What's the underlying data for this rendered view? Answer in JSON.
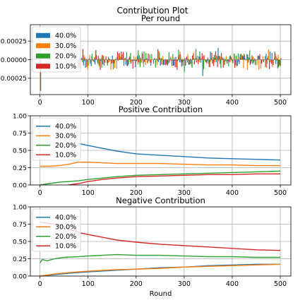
{
  "figure": {
    "suptitle": "Contribution Plot"
  },
  "chart_data": [
    {
      "type": "bar",
      "title": "Per round",
      "xlabel": "",
      "ylabel": "",
      "xlim": [
        -20,
        522
      ],
      "ylim": [
        -0.00047,
        0.00047
      ],
      "xticks": [
        0,
        100,
        200,
        300,
        400,
        500
      ],
      "xtick_labels": [
        "0",
        "100",
        "200",
        "300",
        "400",
        "500"
      ],
      "yticks": [
        0.00025,
        0.0,
        -0.00025
      ],
      "ytick_labels": [
        "0.00025",
        "0.00000",
        "-0.00025"
      ],
      "grid": true,
      "legend": "upper left",
      "series": [
        {
          "name": "40.0%",
          "color": "#1f77b4",
          "offset": -1.5
        },
        {
          "name": "30.0%",
          "color": "#ff7f0e",
          "offset": -0.5
        },
        {
          "name": "20.0%",
          "color": "#2ca02c",
          "offset": 0.5
        },
        {
          "name": "10.0%",
          "color": "#d62728",
          "offset": 1.5
        }
      ],
      "rounds": {
        "start": 80,
        "end": 500,
        "step": 4
      },
      "noise_amplitude": 0.00012,
      "outliers": [
        {
          "x": 0,
          "series": "10.0%",
          "value": -0.00042
        },
        {
          "x": 340,
          "series": "40.0%",
          "value": -0.00022
        },
        {
          "x": 405,
          "series": "10.0%",
          "value": 0.0002
        }
      ]
    },
    {
      "type": "line",
      "title": "Positive Contribution",
      "xlabel": "",
      "ylabel": "",
      "xlim": [
        -20,
        522
      ],
      "ylim": [
        0,
        1.0
      ],
      "xticks": [
        0,
        100,
        200,
        300,
        400,
        500
      ],
      "xtick_labels": [
        "0",
        "100",
        "200",
        "300",
        "400",
        "500"
      ],
      "yticks": [
        0.0,
        0.25,
        0.5,
        0.75,
        1.0
      ],
      "ytick_labels": [
        "0.00",
        "0.25",
        "0.50",
        "0.75",
        "1.00"
      ],
      "grid": true,
      "legend": "upper left",
      "series": [
        {
          "name": "40.0%",
          "color": "#1f77b4",
          "x": [
            80,
            100,
            130,
            160,
            200,
            250,
            300,
            350,
            400,
            450,
            500
          ],
          "y": [
            0.6,
            0.57,
            0.53,
            0.49,
            0.45,
            0.43,
            0.41,
            0.39,
            0.38,
            0.37,
            0.36
          ]
        },
        {
          "name": "30.0%",
          "color": "#ff7f0e",
          "x": [
            0,
            20,
            40,
            60,
            80,
            100,
            130,
            160,
            200,
            250,
            300,
            350,
            400,
            450,
            500
          ],
          "y": [
            0.27,
            0.27,
            0.28,
            0.3,
            0.33,
            0.33,
            0.32,
            0.31,
            0.31,
            0.31,
            0.3,
            0.29,
            0.29,
            0.28,
            0.28
          ]
        },
        {
          "name": "20.0%",
          "color": "#2ca02c",
          "x": [
            0,
            20,
            40,
            60,
            80,
            100,
            130,
            160,
            200,
            250,
            300,
            350,
            400,
            450,
            500
          ],
          "y": [
            0.0,
            0.02,
            0.04,
            0.05,
            0.06,
            0.08,
            0.1,
            0.12,
            0.14,
            0.15,
            0.16,
            0.17,
            0.18,
            0.19,
            0.2
          ]
        },
        {
          "name": "10.0%",
          "color": "#d62728",
          "x": [
            60,
            80,
            100,
            130,
            160,
            200,
            250,
            300,
            350,
            400,
            450,
            500
          ],
          "y": [
            0.0,
            0.02,
            0.05,
            0.08,
            0.1,
            0.12,
            0.13,
            0.14,
            0.15,
            0.15,
            0.16,
            0.16
          ]
        }
      ]
    },
    {
      "type": "line",
      "title": "Negative Contribution",
      "xlabel": "Round",
      "ylabel": "",
      "xlim": [
        -20,
        522
      ],
      "ylim": [
        0,
        1.0
      ],
      "xticks": [
        0,
        100,
        200,
        300,
        400,
        500
      ],
      "xtick_labels": [
        "0",
        "100",
        "200",
        "300",
        "400",
        "500"
      ],
      "yticks": [
        0.0,
        0.25,
        0.5,
        0.75,
        1.0
      ],
      "ytick_labels": [
        "0.00",
        "0.25",
        "0.50",
        "0.75",
        "1.00"
      ],
      "grid": true,
      "legend": "upper left",
      "series": [
        {
          "name": "40.0%",
          "color": "#1f77b4",
          "x": [
            0,
            30,
            60,
            100,
            150,
            200,
            250,
            300,
            350,
            400,
            450,
            500
          ],
          "y": [
            0.0,
            0.02,
            0.04,
            0.06,
            0.08,
            0.1,
            0.12,
            0.13,
            0.15,
            0.16,
            0.17,
            0.17
          ]
        },
        {
          "name": "30.0%",
          "color": "#ff7f0e",
          "x": [
            0,
            30,
            60,
            100,
            150,
            200,
            250,
            300,
            350,
            400,
            450,
            500
          ],
          "y": [
            0.0,
            0.03,
            0.05,
            0.07,
            0.09,
            0.1,
            0.11,
            0.13,
            0.14,
            0.15,
            0.16,
            0.17
          ]
        },
        {
          "name": "20.0%",
          "color": "#2ca02c",
          "x": [
            0,
            5,
            15,
            30,
            50,
            80,
            100,
            130,
            160,
            200,
            250,
            300,
            350,
            400,
            450,
            500
          ],
          "y": [
            0.19,
            0.24,
            0.22,
            0.25,
            0.27,
            0.28,
            0.29,
            0.3,
            0.31,
            0.3,
            0.3,
            0.29,
            0.28,
            0.28,
            0.27,
            0.27
          ]
        },
        {
          "name": "10.0%",
          "color": "#d62728",
          "x": [
            0,
            20,
            40,
            60,
            80,
            100,
            130,
            160,
            200,
            250,
            300,
            350,
            400,
            450,
            500
          ],
          "y": [
            0.78,
            0.76,
            0.74,
            0.68,
            0.63,
            0.6,
            0.56,
            0.52,
            0.49,
            0.46,
            0.44,
            0.42,
            0.4,
            0.38,
            0.37
          ]
        }
      ]
    }
  ]
}
